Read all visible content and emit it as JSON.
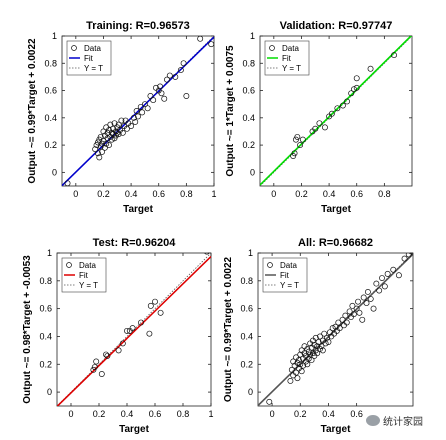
{
  "watermark": {
    "text": "统计家园"
  },
  "chart_data": [
    {
      "type": "scatter",
      "title": "Training: R=0.96573",
      "xlabel": "Target",
      "ylabel": "Output ~= 0.99*Target + 0.0022",
      "xlim": [
        -0.1,
        1.0
      ],
      "ylim": [
        -0.1,
        1.0
      ],
      "xticks": [
        0,
        0.2,
        0.4,
        0.6,
        0.8,
        1
      ],
      "yticks": [
        0,
        0.2,
        0.4,
        0.6,
        0.8,
        1
      ],
      "fit": {
        "slope": 0.99,
        "intercept": 0.0022
      },
      "fit_color": "#0000cc",
      "legend": [
        "Data",
        "Fit",
        "Y = T"
      ],
      "legend_position": "top-left",
      "grid": false,
      "points": [
        [
          -0.06,
          -0.08
        ],
        [
          0.14,
          0.17
        ],
        [
          0.15,
          0.2
        ],
        [
          0.16,
          0.22
        ],
        [
          0.16,
          0.14
        ],
        [
          0.17,
          0.24
        ],
        [
          0.17,
          0.11
        ],
        [
          0.18,
          0.19
        ],
        [
          0.18,
          0.26
        ],
        [
          0.19,
          0.21
        ],
        [
          0.19,
          0.15
        ],
        [
          0.2,
          0.23
        ],
        [
          0.2,
          0.3
        ],
        [
          0.21,
          0.27
        ],
        [
          0.21,
          0.18
        ],
        [
          0.22,
          0.21
        ],
        [
          0.22,
          0.33
        ],
        [
          0.23,
          0.25
        ],
        [
          0.23,
          0.29
        ],
        [
          0.24,
          0.2
        ],
        [
          0.24,
          0.31
        ],
        [
          0.25,
          0.26
        ],
        [
          0.25,
          0.35
        ],
        [
          0.26,
          0.24
        ],
        [
          0.26,
          0.29
        ],
        [
          0.27,
          0.32
        ],
        [
          0.27,
          0.28
        ],
        [
          0.28,
          0.25
        ],
        [
          0.28,
          0.36
        ],
        [
          0.29,
          0.3
        ],
        [
          0.29,
          0.27
        ],
        [
          0.3,
          0.33
        ],
        [
          0.3,
          0.29
        ],
        [
          0.31,
          0.28
        ],
        [
          0.31,
          0.35
        ],
        [
          0.32,
          0.31
        ],
        [
          0.33,
          0.38
        ],
        [
          0.34,
          0.29
        ],
        [
          0.35,
          0.34
        ],
        [
          0.36,
          0.38
        ],
        [
          0.37,
          0.32
        ],
        [
          0.38,
          0.36
        ],
        [
          0.4,
          0.34
        ],
        [
          0.42,
          0.4
        ],
        [
          0.43,
          0.37
        ],
        [
          0.44,
          0.45
        ],
        [
          0.45,
          0.41
        ],
        [
          0.47,
          0.48
        ],
        [
          0.48,
          0.44
        ],
        [
          0.5,
          0.5
        ],
        [
          0.52,
          0.47
        ],
        [
          0.54,
          0.56
        ],
        [
          0.56,
          0.53
        ],
        [
          0.58,
          0.62
        ],
        [
          0.6,
          0.6
        ],
        [
          0.61,
          0.63
        ],
        [
          0.62,
          0.58
        ],
        [
          0.64,
          0.54
        ],
        [
          0.66,
          0.68
        ],
        [
          0.68,
          0.71
        ],
        [
          0.72,
          0.7
        ],
        [
          0.76,
          0.75
        ],
        [
          0.78,
          0.8
        ],
        [
          0.8,
          0.56
        ],
        [
          0.9,
          0.98
        ],
        [
          0.98,
          0.94
        ]
      ]
    },
    {
      "type": "scatter",
      "title": "Validation: R=0.97747",
      "xlabel": "Target",
      "ylabel": "Output ~= 1*Target + 0.0075",
      "xlim": [
        -0.1,
        1.0
      ],
      "ylim": [
        -0.1,
        1.0
      ],
      "xticks": [
        0,
        0.2,
        0.4,
        0.6,
        0.8
      ],
      "yticks": [
        0,
        0.2,
        0.4,
        0.6,
        0.8,
        1
      ],
      "fit": {
        "slope": 1.0,
        "intercept": 0.0075
      },
      "fit_color": "#00dd00",
      "legend": [
        "Data",
        "Fit",
        "Y = T"
      ],
      "legend_position": "top-left",
      "grid": false,
      "points": [
        [
          0.14,
          0.12
        ],
        [
          0.15,
          0.14
        ],
        [
          0.16,
          0.24
        ],
        [
          0.17,
          0.26
        ],
        [
          0.19,
          0.2
        ],
        [
          0.21,
          0.24
        ],
        [
          0.28,
          0.3
        ],
        [
          0.3,
          0.32
        ],
        [
          0.33,
          0.36
        ],
        [
          0.37,
          0.33
        ],
        [
          0.4,
          0.41
        ],
        [
          0.42,
          0.43
        ],
        [
          0.46,
          0.47
        ],
        [
          0.5,
          0.49
        ],
        [
          0.53,
          0.52
        ],
        [
          0.56,
          0.58
        ],
        [
          0.58,
          0.61
        ],
        [
          0.6,
          0.69
        ],
        [
          0.6,
          0.62
        ],
        [
          0.7,
          0.76
        ],
        [
          0.87,
          0.86
        ]
      ]
    },
    {
      "type": "scatter",
      "title": "Test: R=0.96204",
      "xlabel": "Target",
      "ylabel": "Output ~= 0.98*Target + -0.0053",
      "xlim": [
        -0.1,
        1.0
      ],
      "ylim": [
        -0.1,
        1.0
      ],
      "xticks": [
        0,
        0.2,
        0.4,
        0.6,
        0.8,
        1
      ],
      "yticks": [
        0,
        0.2,
        0.4,
        0.6,
        0.8,
        1
      ],
      "fit": {
        "slope": 0.98,
        "intercept": -0.0053
      },
      "fit_color": "#dd0000",
      "legend": [
        "Data",
        "Fit",
        "Y = T"
      ],
      "legend_position": "top-left",
      "grid": false,
      "points": [
        [
          0.16,
          0.16
        ],
        [
          0.17,
          0.18
        ],
        [
          0.18,
          0.22
        ],
        [
          0.22,
          0.13
        ],
        [
          0.25,
          0.27
        ],
        [
          0.26,
          0.26
        ],
        [
          0.34,
          0.3
        ],
        [
          0.37,
          0.35
        ],
        [
          0.4,
          0.44
        ],
        [
          0.42,
          0.44
        ],
        [
          0.44,
          0.46
        ],
        [
          0.5,
          0.5
        ],
        [
          0.56,
          0.42
        ],
        [
          0.57,
          0.62
        ],
        [
          0.6,
          0.65
        ],
        [
          0.64,
          0.57
        ],
        [
          0.97,
          1.01
        ]
      ]
    },
    {
      "type": "scatter",
      "title": "All: R=0.96682",
      "xlabel": "Target",
      "ylabel": "Output ~= 0.99*Target + 0.0022",
      "xlim": [
        -0.1,
        1.0
      ],
      "ylim": [
        -0.1,
        1.0
      ],
      "xticks": [
        0,
        0.2,
        0.4,
        0.6
      ],
      "yticks": [
        0,
        0.2,
        0.4,
        0.6,
        0.8,
        1
      ],
      "fit": {
        "slope": 0.99,
        "intercept": 0.0022
      },
      "fit_color": "#555555",
      "legend": [
        "Data",
        "Fit",
        "Y = T"
      ],
      "legend_position": "top-left",
      "grid": false,
      "points": [
        [
          -0.02,
          -0.07
        ],
        [
          0.13,
          0.08
        ],
        [
          0.14,
          0.16
        ],
        [
          0.15,
          0.12
        ],
        [
          0.15,
          0.22
        ],
        [
          0.16,
          0.19
        ],
        [
          0.17,
          0.14
        ],
        [
          0.17,
          0.25
        ],
        [
          0.18,
          0.21
        ],
        [
          0.18,
          0.1
        ],
        [
          0.19,
          0.23
        ],
        [
          0.19,
          0.17
        ],
        [
          0.2,
          0.27
        ],
        [
          0.2,
          0.2
        ],
        [
          0.21,
          0.15
        ],
        [
          0.21,
          0.3
        ],
        [
          0.22,
          0.24
        ],
        [
          0.22,
          0.19
        ],
        [
          0.23,
          0.28
        ],
        [
          0.23,
          0.33
        ],
        [
          0.24,
          0.22
        ],
        [
          0.24,
          0.26
        ],
        [
          0.25,
          0.31
        ],
        [
          0.25,
          0.2
        ],
        [
          0.26,
          0.29
        ],
        [
          0.26,
          0.24
        ],
        [
          0.27,
          0.35
        ],
        [
          0.27,
          0.27
        ],
        [
          0.28,
          0.23
        ],
        [
          0.28,
          0.32
        ],
        [
          0.29,
          0.28
        ],
        [
          0.29,
          0.37
        ],
        [
          0.3,
          0.26
        ],
        [
          0.3,
          0.34
        ],
        [
          0.31,
          0.3
        ],
        [
          0.31,
          0.39
        ],
        [
          0.32,
          0.28
        ],
        [
          0.32,
          0.33
        ],
        [
          0.33,
          0.36
        ],
        [
          0.34,
          0.31
        ],
        [
          0.34,
          0.4
        ],
        [
          0.35,
          0.33
        ],
        [
          0.36,
          0.37
        ],
        [
          0.36,
          0.3
        ],
        [
          0.37,
          0.42
        ],
        [
          0.38,
          0.35
        ],
        [
          0.39,
          0.39
        ],
        [
          0.4,
          0.36
        ],
        [
          0.41,
          0.43
        ],
        [
          0.42,
          0.4
        ],
        [
          0.43,
          0.46
        ],
        [
          0.44,
          0.42
        ],
        [
          0.45,
          0.47
        ],
        [
          0.46,
          0.44
        ],
        [
          0.47,
          0.5
        ],
        [
          0.48,
          0.46
        ],
        [
          0.5,
          0.52
        ],
        [
          0.51,
          0.48
        ],
        [
          0.52,
          0.55
        ],
        [
          0.53,
          0.5
        ],
        [
          0.55,
          0.58
        ],
        [
          0.56,
          0.54
        ],
        [
          0.57,
          0.62
        ],
        [
          0.58,
          0.56
        ],
        [
          0.6,
          0.6
        ],
        [
          0.61,
          0.65
        ],
        [
          0.62,
          0.57
        ],
        [
          0.64,
          0.52
        ],
        [
          0.65,
          0.68
        ],
        [
          0.67,
          0.64
        ],
        [
          0.68,
          0.72
        ],
        [
          0.7,
          0.67
        ],
        [
          0.72,
          0.6
        ],
        [
          0.74,
          0.78
        ],
        [
          0.76,
          0.73
        ],
        [
          0.78,
          0.82
        ],
        [
          0.8,
          0.76
        ],
        [
          0.82,
          0.85
        ],
        [
          0.86,
          0.88
        ],
        [
          0.9,
          0.84
        ],
        [
          0.94,
          0.96
        ],
        [
          0.97,
          0.99
        ],
        [
          0.99,
          1.01
        ]
      ]
    }
  ]
}
